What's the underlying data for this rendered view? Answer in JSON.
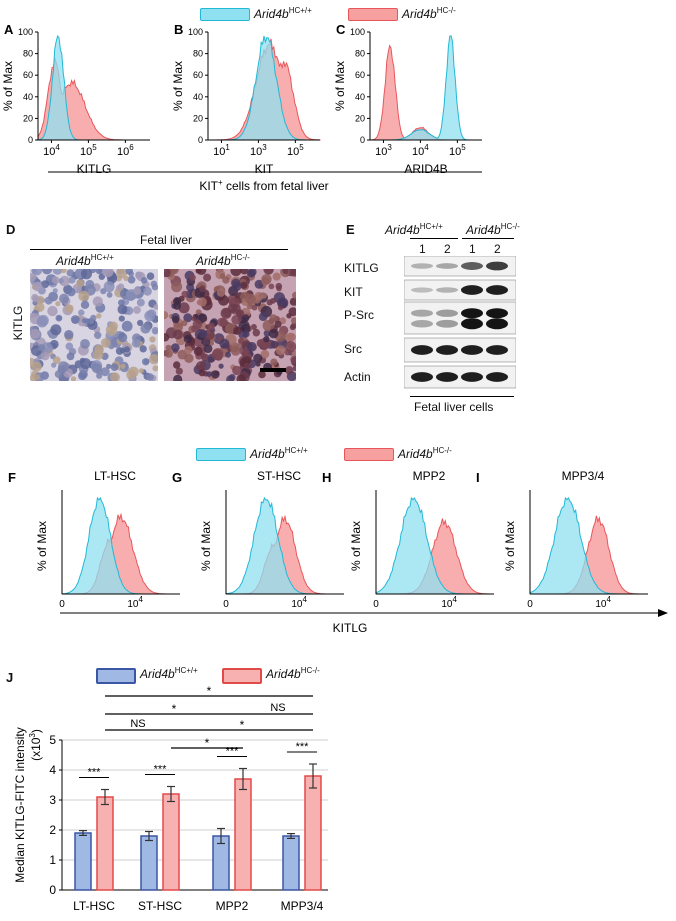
{
  "colors": {
    "wt_fill": "#8fe0f0",
    "wt_stroke": "#22b8d6",
    "ko_fill": "#f7a0a0",
    "ko_stroke": "#e8565b",
    "bar_wt": "#9fb8e4",
    "bar_wt_stroke": "#3b56a5",
    "bar_ko": "#f7b1b1",
    "bar_ko_stroke": "#e24a4a",
    "ihc_wt": "#c9c2d8",
    "ihc_ko": "#a7768c"
  },
  "legend": {
    "wt_base": "Arid4b",
    "wt_sup": "HC+/+",
    "ko_base": "Arid4b",
    "ko_sup": "HC-/-"
  },
  "panel_letters": [
    "A",
    "B",
    "C",
    "D",
    "E",
    "F",
    "G",
    "H",
    "I",
    "J"
  ],
  "top_flow": {
    "ylabel": "% of Max",
    "footer": "KIT",
    "footer_sup": "+",
    "footer_rest": " cells from fetal liver",
    "panels": [
      {
        "letter": "A",
        "xlabel": "KITLG",
        "yticks": [
          "100",
          "80",
          "60",
          "40",
          "20",
          "0"
        ],
        "xticks": [
          {
            "b": "10",
            "e": "4"
          },
          {
            "b": "10",
            "e": "5"
          },
          {
            "b": "10",
            "e": "6"
          }
        ]
      },
      {
        "letter": "B",
        "xlabel": "KIT",
        "yticks": [
          "100",
          "80",
          "60",
          "40",
          "20",
          "0"
        ],
        "xticks": [
          {
            "b": "10",
            "e": "1"
          },
          {
            "b": "10",
            "e": "3"
          },
          {
            "b": "10",
            "e": "5"
          }
        ]
      },
      {
        "letter": "C",
        "xlabel": "ARID4B",
        "yticks": [
          "100",
          "80",
          "60",
          "40",
          "20",
          "0"
        ],
        "xticks": [
          {
            "b": "10",
            "e": "3"
          },
          {
            "b": "10",
            "e": "4"
          },
          {
            "b": "10",
            "e": "5"
          }
        ]
      }
    ]
  },
  "panel_d": {
    "title": "Fetal liver",
    "ylabel": "KITLG",
    "left_base": "Arid4b",
    "left_sup": "HC+/+",
    "right_base": "Arid4b",
    "right_sup": "HC-/-"
  },
  "panel_e": {
    "wt_base": "Arid4b",
    "wt_sup": "HC+/+",
    "ko_base": "Arid4b",
    "ko_sup": "HC-/-",
    "lanes": [
      "1",
      "2",
      "1",
      "2"
    ],
    "rows": [
      "KITLG",
      "KIT",
      "P-Src",
      "Src",
      "Actin"
    ],
    "footer": "Fetal liver cells"
  },
  "mid_flow": {
    "ylabel": "% of Max",
    "xlabel": "KITLG",
    "panels": [
      {
        "letter": "F",
        "title": "LT-HSC",
        "tick0": "0",
        "tick1_b": "10",
        "tick1_e": "4"
      },
      {
        "letter": "G",
        "title": "ST-HSC",
        "tick0": "0",
        "tick1_b": "10",
        "tick1_e": "4"
      },
      {
        "letter": "H",
        "title": "MPP2",
        "tick0": "0",
        "tick1_b": "10",
        "tick1_e": "4"
      },
      {
        "letter": "I",
        "title": "MPP3/4",
        "tick0": "0",
        "tick1_b": "10",
        "tick1_e": "4"
      }
    ]
  },
  "chart_data": {
    "type": "bar",
    "title": "",
    "ylabel": "Median KITLG-FITC intensity",
    "yunit_base": "(x10",
    "yunit_sup": "3",
    "yunit_end": ")",
    "ylim": [
      0,
      5
    ],
    "yticks": [
      "0",
      "1",
      "2",
      "3",
      "4",
      "5"
    ],
    "categories": [
      "LT-HSC",
      "ST-HSC",
      "MPP2",
      "MPP3/4"
    ],
    "series": [
      {
        "name": "Arid4b HC+/+",
        "values": [
          1.9,
          1.8,
          1.8,
          1.8
        ],
        "errors": [
          0.08,
          0.15,
          0.25,
          0.08
        ]
      },
      {
        "name": "Arid4b HC-/-",
        "values": [
          3.1,
          3.2,
          3.7,
          3.8
        ],
        "errors": [
          0.25,
          0.25,
          0.35,
          0.4
        ]
      }
    ],
    "within_sig": [
      "***",
      "***",
      "***",
      "***"
    ],
    "brackets": [
      {
        "label": "*"
      },
      {
        "label": "*"
      },
      {
        "label": "NS"
      },
      {
        "label": "NS"
      },
      {
        "label": "*"
      },
      {
        "label": "*"
      }
    ]
  }
}
